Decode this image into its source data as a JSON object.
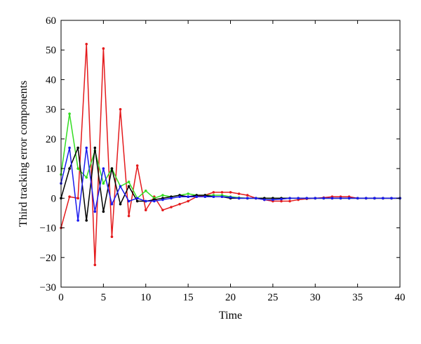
{
  "chart_data": {
    "type": "line",
    "title": "",
    "xlabel": "Time",
    "ylabel": "Third tracking error components",
    "xlim": [
      0,
      40
    ],
    "ylim": [
      -30,
      60
    ],
    "xticks": [
      0,
      5,
      10,
      15,
      20,
      25,
      30,
      35,
      40
    ],
    "yticks": [
      -30,
      -20,
      -10,
      0,
      10,
      20,
      30,
      40,
      50,
      60
    ],
    "grid": false,
    "legend": "none",
    "x": [
      0,
      1,
      2,
      3,
      4,
      5,
      6,
      7,
      8,
      9,
      10,
      11,
      12,
      13,
      14,
      15,
      16,
      17,
      18,
      19,
      20,
      21,
      22,
      23,
      24,
      25,
      26,
      27,
      28,
      29,
      30,
      31,
      32,
      33,
      34,
      35,
      36,
      37,
      38,
      39,
      40
    ],
    "series": [
      {
        "color": "#e41a1c",
        "values": [
          -10,
          0.5,
          0,
          52,
          -22.5,
          50.5,
          -13,
          30,
          -6,
          11,
          -4,
          0.5,
          -4,
          -3,
          -2,
          -1,
          0.5,
          1,
          2,
          2,
          2,
          1.5,
          1,
          0,
          -0.5,
          -1,
          -1,
          -1,
          -0.5,
          -0.2,
          0,
          0.2,
          0.5,
          0.5,
          0.5,
          0,
          0,
          0,
          0,
          0,
          0
        ]
      },
      {
        "color": "#33dd22",
        "values": [
          8,
          28.5,
          10,
          7,
          16,
          5,
          10,
          4,
          5.5,
          0,
          2.5,
          0,
          1,
          0.5,
          1,
          1.5,
          1,
          1,
          1,
          1,
          0.5,
          0.2,
          0,
          0,
          0,
          0,
          0,
          0,
          0,
          0,
          0,
          0,
          0,
          0,
          0,
          0,
          0,
          0,
          0,
          0,
          0
        ]
      },
      {
        "color": "#000000",
        "values": [
          0,
          10,
          17,
          -7.5,
          17,
          -4.5,
          10,
          -2,
          4,
          -1,
          -1,
          -0.5,
          0,
          0.5,
          1,
          0.5,
          1,
          1,
          0.5,
          0.5,
          0,
          0,
          0,
          0,
          0,
          0,
          0,
          0,
          0,
          0,
          0,
          0,
          0,
          0,
          0,
          0,
          0,
          0,
          0,
          0,
          0
        ]
      },
      {
        "color": "#1a1aee",
        "values": [
          5,
          17,
          -7.5,
          17,
          -4.5,
          10,
          -2,
          4,
          -1,
          0,
          -1,
          -1,
          -0.5,
          0,
          0.5,
          0.5,
          0.5,
          0.5,
          0.5,
          0.5,
          0.3,
          0,
          0,
          0,
          -0.5,
          -0.5,
          -0.3,
          0,
          0,
          0,
          0,
          0,
          0,
          0,
          0,
          0,
          0,
          0,
          0,
          0,
          0
        ]
      }
    ]
  }
}
